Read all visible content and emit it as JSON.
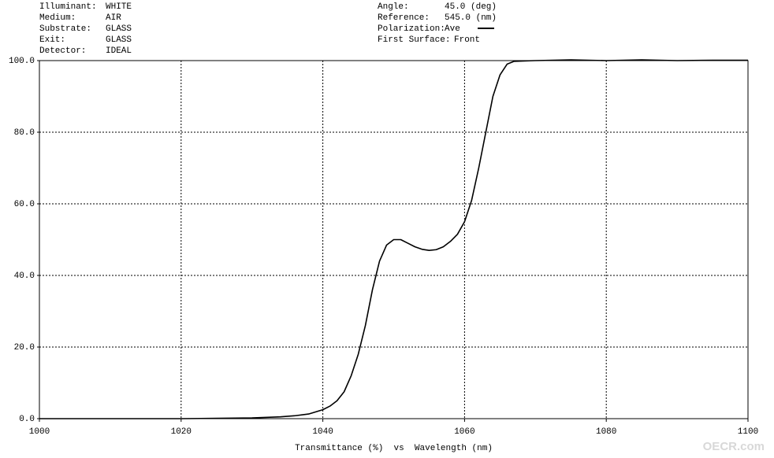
{
  "header": {
    "left": [
      [
        "Illuminant:",
        "WHITE"
      ],
      [
        "Medium:",
        "AIR"
      ],
      [
        "Substrate:",
        "GLASS"
      ],
      [
        "Exit:",
        "GLASS"
      ],
      [
        "Detector:",
        "IDEAL"
      ]
    ],
    "right": [
      [
        "Angle:",
        "45.0 (deg)"
      ],
      [
        "Reference:",
        "545.0 (nm)"
      ],
      [
        "Polarization:",
        "Ave"
      ],
      [
        "First Surface:",
        "Front"
      ]
    ]
  },
  "watermark": "OECR.com",
  "chart_data": {
    "type": "line",
    "x_label": "Transmittance (%)  vs  Wavelength (nm)",
    "x": [
      1000,
      1010,
      1020,
      1030,
      1034,
      1036,
      1038,
      1040,
      1041,
      1042,
      1043,
      1044,
      1045,
      1046,
      1047,
      1048,
      1049,
      1050,
      1051,
      1052,
      1053,
      1054,
      1055,
      1056,
      1057,
      1058,
      1059,
      1060,
      1061,
      1062,
      1063,
      1064,
      1065,
      1066,
      1067,
      1070,
      1075,
      1080,
      1085,
      1090,
      1095,
      1100
    ],
    "series": [
      {
        "color": "#000000",
        "values": [
          0,
          0,
          0,
          0.2,
          0.5,
          0.8,
          1.3,
          2.5,
          3.5,
          5,
          7.5,
          12,
          18,
          26,
          36,
          44,
          48.5,
          50,
          50,
          49,
          48,
          47.3,
          47,
          47.2,
          48,
          49.5,
          51.5,
          55,
          61,
          70,
          80,
          90,
          96,
          99,
          99.8,
          100,
          100.2,
          100,
          100.2,
          100,
          100.1,
          100.1
        ]
      }
    ],
    "xlim": [
      1000,
      1100
    ],
    "xticks": [
      1000,
      1020,
      1040,
      1060,
      1080,
      1100
    ],
    "ylim": [
      0,
      100
    ],
    "yticks": [
      {
        "value": 0,
        "label": "0.0"
      },
      {
        "value": 20,
        "label": "20.0"
      },
      {
        "value": 40,
        "label": "40.0"
      },
      {
        "value": 60,
        "label": "60.0"
      },
      {
        "value": 80,
        "label": "80.0"
      },
      {
        "value": 100,
        "label": "100.0"
      }
    ],
    "grid": true
  }
}
